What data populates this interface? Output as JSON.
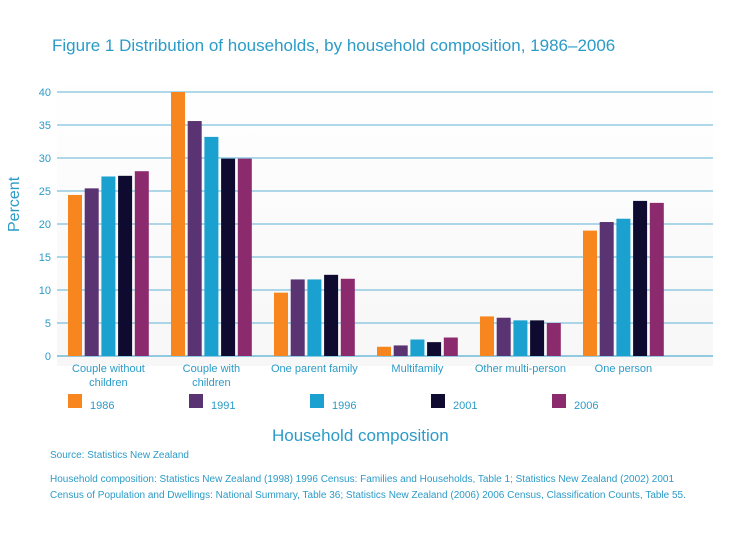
{
  "chart_data": {
    "type": "bar",
    "title": "Figure 1  Distribution of households, by household composition, 1986–2006",
    "xlabel": "Household composition",
    "ylabel": "Percent",
    "ylim": [
      0,
      40
    ],
    "yticks": [
      0,
      5,
      10,
      15,
      20,
      25,
      30,
      35,
      40
    ],
    "categories": [
      {
        "line1": "Couple without",
        "line2": "children"
      },
      {
        "line1": "Couple with",
        "line2": "children"
      },
      {
        "line1": "One parent family",
        "line2": ""
      },
      {
        "line1": "Multifamily",
        "line2": ""
      },
      {
        "line1": "Other multi-person",
        "line2": ""
      },
      {
        "line1": "One person",
        "line2": ""
      }
    ],
    "series": [
      {
        "name": "1986",
        "color": "#f7861e",
        "values": [
          24.4,
          40.0,
          9.6,
          1.4,
          6.0,
          19.0
        ]
      },
      {
        "name": "1991",
        "color": "#5a3472",
        "values": [
          25.4,
          35.6,
          11.6,
          1.6,
          5.8,
          20.3
        ]
      },
      {
        "name": "1996",
        "color": "#1aa1cf",
        "values": [
          27.2,
          33.2,
          11.6,
          2.5,
          5.4,
          20.8
        ]
      },
      {
        "name": "2001",
        "color": "#0f0a30",
        "values": [
          27.3,
          29.9,
          12.3,
          2.1,
          5.4,
          23.5
        ]
      },
      {
        "name": "2006",
        "color": "#8c2a6e",
        "values": [
          28.0,
          29.9,
          11.7,
          2.8,
          5.0,
          23.2
        ]
      }
    ],
    "grid": true,
    "legend_position": "bottom"
  },
  "notes": {
    "source": "Source: Statistics New Zealand",
    "citation": "Household composition: Statistics New Zealand (1998) 1996 Census: Families and Households, Table 1; Statistics New Zealand (2002) 2001 Census of Population and Dwellings: National Summary, Table 36; Statistics New Zealand (2006) 2006 Census, Classification Counts, Table 55."
  },
  "colors": {
    "accent": "#2b9bc8",
    "grid": "#2b9bc8"
  }
}
